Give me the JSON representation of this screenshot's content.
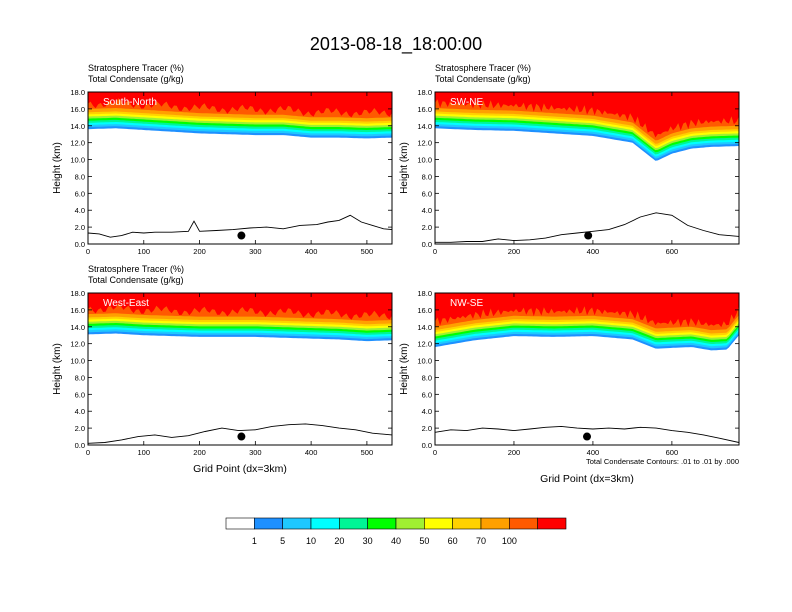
{
  "title": "2013-08-18_18:00:00",
  "header_line1": "Stratosphere Tracer   (%)",
  "header_line2": "Total Condensate   (g/kg)",
  "ylabel": "Height (km)",
  "xlabel": "Grid Point (dx=3km)",
  "contour_note": "Total Condensate Contours: .01 to .01 by .000",
  "colorbar": {
    "colors": [
      "#ffffff",
      "#1e90ff",
      "#1ec8ff",
      "#00ffff",
      "#00f596",
      "#00ff00",
      "#a0f032",
      "#ffff00",
      "#ffd200",
      "#ffa000",
      "#ff5a00",
      "#ff0000"
    ],
    "labels": [
      "1",
      "5",
      "10",
      "20",
      "30",
      "40",
      "50",
      "60",
      "70",
      "100"
    ]
  },
  "chart_data": [
    {
      "type": "contour",
      "panel_label": "South-North",
      "xlim": [
        0,
        545
      ],
      "ylim": [
        0,
        18
      ],
      "x_ticks": [
        "0",
        "100",
        "200",
        "300",
        "400",
        "500"
      ],
      "x_tick_values": [
        0,
        100,
        200,
        300,
        400,
        500
      ],
      "y_ticks": [
        "0.0",
        "2.0",
        "4.0",
        "6.0",
        "8.0",
        "10.0",
        "12.0",
        "14.0",
        "16.0",
        "18.0"
      ],
      "tracer_boundary_x": [
        0,
        50,
        100,
        150,
        200,
        250,
        300,
        350,
        400,
        450,
        500,
        545
      ],
      "tracer_boundary_km": [
        13.6,
        13.7,
        13.5,
        13.3,
        13.1,
        13.0,
        12.9,
        12.9,
        12.6,
        12.6,
        12.5,
        12.6
      ],
      "terrain_x": [
        0,
        20,
        40,
        60,
        80,
        100,
        120,
        150,
        180,
        190,
        200,
        230,
        260,
        290,
        320,
        350,
        380,
        410,
        430,
        450,
        470,
        490,
        510,
        530,
        545
      ],
      "terrain_km": [
        1.3,
        1.2,
        0.8,
        1.0,
        1.4,
        1.3,
        1.4,
        1.4,
        1.5,
        2.7,
        1.5,
        1.6,
        1.7,
        1.9,
        2.0,
        1.8,
        2.2,
        2.3,
        2.6,
        2.8,
        3.4,
        2.6,
        2.2,
        1.8,
        1.7
      ],
      "point_marker": {
        "x": 275,
        "y_km": 1.0
      }
    },
    {
      "type": "contour",
      "panel_label": "SW-NE",
      "xlim": [
        0,
        770
      ],
      "ylim": [
        0,
        18
      ],
      "x_ticks": [
        "0",
        "200",
        "400",
        "600"
      ],
      "x_tick_values": [
        0,
        200,
        400,
        600
      ],
      "y_ticks": [
        "0.0",
        "2.0",
        "4.0",
        "6.0",
        "8.0",
        "10.0",
        "12.0",
        "14.0",
        "16.0",
        "18.0"
      ],
      "tracer_boundary_x": [
        0,
        100,
        200,
        300,
        400,
        500,
        560,
        600,
        650,
        700,
        770
      ],
      "tracer_boundary_km": [
        13.7,
        13.5,
        13.4,
        13.1,
        12.8,
        12.0,
        9.8,
        10.7,
        11.3,
        11.5,
        11.6
      ],
      "terrain_x": [
        0,
        40,
        80,
        120,
        160,
        200,
        240,
        280,
        320,
        360,
        400,
        440,
        480,
        520,
        560,
        600,
        640,
        680,
        720,
        770
      ],
      "terrain_km": [
        0.2,
        0.2,
        0.3,
        0.3,
        0.6,
        0.4,
        0.5,
        0.7,
        1.1,
        1.3,
        1.5,
        1.7,
        2.3,
        3.2,
        3.7,
        3.4,
        2.2,
        1.6,
        1.1,
        0.9
      ],
      "point_marker": {
        "x": 388,
        "y_km": 1.0
      }
    },
    {
      "type": "contour",
      "panel_label": "West-East",
      "xlim": [
        0,
        545
      ],
      "ylim": [
        0,
        18
      ],
      "x_ticks": [
        "0",
        "100",
        "200",
        "300",
        "400",
        "500"
      ],
      "x_tick_values": [
        0,
        100,
        200,
        300,
        400,
        500
      ],
      "y_ticks": [
        "0.0",
        "2.0",
        "4.0",
        "6.0",
        "8.0",
        "10.0",
        "12.0",
        "14.0",
        "16.0",
        "18.0"
      ],
      "tracer_boundary_x": [
        0,
        50,
        100,
        150,
        200,
        250,
        300,
        350,
        400,
        450,
        500,
        545
      ],
      "tracer_boundary_km": [
        13.1,
        13.2,
        13.0,
        12.9,
        12.8,
        12.8,
        12.8,
        12.7,
        12.6,
        12.5,
        12.3,
        12.4
      ],
      "terrain_x": [
        0,
        30,
        60,
        90,
        120,
        150,
        180,
        210,
        240,
        270,
        300,
        330,
        360,
        390,
        420,
        450,
        480,
        510,
        545
      ],
      "terrain_km": [
        0.2,
        0.3,
        0.6,
        1.0,
        1.2,
        0.9,
        1.1,
        1.6,
        2.0,
        1.7,
        1.8,
        2.2,
        2.4,
        2.5,
        2.3,
        2.0,
        1.8,
        1.4,
        1.2
      ],
      "point_marker": {
        "x": 275,
        "y_km": 1.0
      }
    },
    {
      "type": "contour",
      "panel_label": "NW-SE",
      "xlim": [
        0,
        770
      ],
      "ylim": [
        0,
        18
      ],
      "x_ticks": [
        "0",
        "200",
        "400",
        "600"
      ],
      "x_tick_values": [
        0,
        200,
        400,
        600
      ],
      "y_ticks": [
        "0.0",
        "2.0",
        "4.0",
        "6.0",
        "8.0",
        "10.0",
        "12.0",
        "14.0",
        "16.0",
        "18.0"
      ],
      "tracer_boundary_x": [
        0,
        100,
        200,
        300,
        400,
        500,
        560,
        600,
        650,
        700,
        740,
        770
      ],
      "tracer_boundary_km": [
        11.6,
        12.4,
        12.9,
        12.8,
        12.9,
        12.5,
        11.4,
        11.5,
        11.6,
        11.2,
        11.3,
        13.0
      ],
      "terrain_x": [
        0,
        40,
        80,
        120,
        160,
        200,
        240,
        280,
        320,
        360,
        400,
        440,
        480,
        520,
        560,
        600,
        640,
        680,
        720,
        770
      ],
      "terrain_km": [
        1.5,
        1.8,
        1.7,
        2.0,
        1.9,
        1.7,
        1.9,
        2.1,
        2.2,
        2.0,
        1.9,
        2.0,
        1.9,
        2.1,
        2.0,
        1.7,
        1.5,
        1.2,
        0.8,
        0.3
      ],
      "point_marker": {
        "x": 385,
        "y_km": 1.0
      }
    }
  ]
}
